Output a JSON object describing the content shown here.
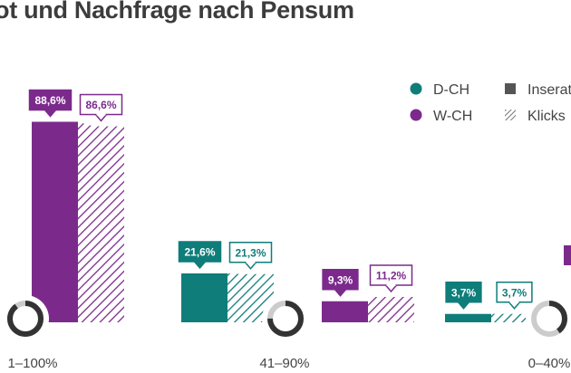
{
  "title": "ot und Nachfrage nach Pensum",
  "colors": {
    "d_ch": "#0f7d7a",
    "w_ch": "#7b2a8c",
    "ring_dark": "#333333",
    "ring_light": "#cccccc",
    "legend_gray": "#555555"
  },
  "legend": {
    "series": [
      {
        "label": "D-CH",
        "color": "#0f7d7a",
        "icon": "circle-marker"
      },
      {
        "label": "W-CH",
        "color": "#7b2a8c",
        "icon": "circle-marker"
      }
    ],
    "styles": [
      {
        "label": "Inserat",
        "icon": "solid-square"
      },
      {
        "label": "Klicks",
        "icon": "hatched-square"
      }
    ]
  },
  "chart_data": {
    "type": "bar",
    "title": "ot und Nachfrage nach Pensum",
    "categories": [
      "1–100%",
      "41–90%",
      "0–40%"
    ],
    "series": [
      {
        "name": "D-CH",
        "style": "Inserat",
        "values": [
          null,
          21.6,
          3.7
        ]
      },
      {
        "name": "D-CH",
        "style": "Klicks",
        "values": [
          null,
          21.3,
          3.7
        ]
      },
      {
        "name": "W-CH",
        "style": "Inserat",
        "values": [
          88.6,
          9.3,
          null
        ]
      },
      {
        "name": "W-CH",
        "style": "Klicks",
        "values": [
          86.6,
          11.2,
          null
        ]
      }
    ],
    "value_labels": {
      "w_ch_inserat": [
        "88,6%",
        "9,3%",
        ""
      ],
      "w_ch_klicks": [
        "86,6%",
        "11,2%",
        ""
      ],
      "d_ch_inserat": [
        "",
        "21,6%",
        "3,7%"
      ],
      "d_ch_klicks": [
        "",
        "21,3%",
        "3,7%"
      ]
    },
    "unit": "%",
    "ylim": [
      0,
      100
    ],
    "legend_position": "top-right",
    "grid": false
  }
}
